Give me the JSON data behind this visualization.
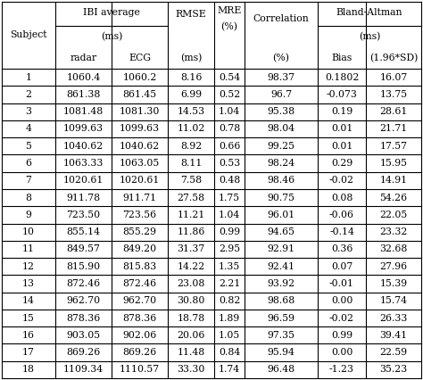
{
  "rows": [
    [
      "1",
      "1060.4",
      "1060.2",
      "8.16",
      "0.54",
      "98.37",
      "0.1802",
      "16.07"
    ],
    [
      "2",
      "861.38",
      "861.45",
      "6.99",
      "0.52",
      "96.7",
      "-0.073",
      "13.75"
    ],
    [
      "3",
      "1081.48",
      "1081.30",
      "14.53",
      "1.04",
      "95.38",
      "0.19",
      "28.61"
    ],
    [
      "4",
      "1099.63",
      "1099.63",
      "11.02",
      "0.78",
      "98.04",
      "0.01",
      "21.71"
    ],
    [
      "5",
      "1040.62",
      "1040.62",
      "8.92",
      "0.66",
      "99.25",
      "0.01",
      "17.57"
    ],
    [
      "6",
      "1063.33",
      "1063.05",
      "8.11",
      "0.53",
      "98.24",
      "0.29",
      "15.95"
    ],
    [
      "7",
      "1020.61",
      "1020.61",
      "7.58",
      "0.48",
      "98.46",
      "-0.02",
      "14.91"
    ],
    [
      "8",
      "911.78",
      "911.71",
      "27.58",
      "1.75",
      "90.75",
      "0.08",
      "54.26"
    ],
    [
      "9",
      "723.50",
      "723.56",
      "11.21",
      "1.04",
      "96.01",
      "-0.06",
      "22.05"
    ],
    [
      "10",
      "855.14",
      "855.29",
      "11.86",
      "0.99",
      "94.65",
      "-0.14",
      "23.32"
    ],
    [
      "11",
      "849.57",
      "849.20",
      "31.37",
      "2.95",
      "92.91",
      "0.36",
      "32.68"
    ],
    [
      "12",
      "815.90",
      "815.83",
      "14.22",
      "1.35",
      "92.41",
      "0.07",
      "27.96"
    ],
    [
      "13",
      "872.46",
      "872.46",
      "23.08",
      "2.21",
      "93.92",
      "-0.01",
      "15.39"
    ],
    [
      "14",
      "962.70",
      "962.70",
      "30.80",
      "0.82",
      "98.68",
      "0.00",
      "15.74"
    ],
    [
      "15",
      "878.36",
      "878.36",
      "18.78",
      "1.89",
      "96.59",
      "-0.02",
      "26.33"
    ],
    [
      "16",
      "903.05",
      "902.06",
      "20.06",
      "1.05",
      "97.35",
      "0.99",
      "39.41"
    ],
    [
      "17",
      "869.26",
      "869.26",
      "11.48",
      "0.84",
      "95.94",
      "0.00",
      "22.59"
    ],
    [
      "18",
      "1109.34",
      "1110.57",
      "33.30",
      "1.74",
      "96.48",
      "-1.23",
      "35.23"
    ]
  ],
  "bg": "#ffffff",
  "fg": "#000000",
  "fs": 7.8,
  "lw": 0.8
}
